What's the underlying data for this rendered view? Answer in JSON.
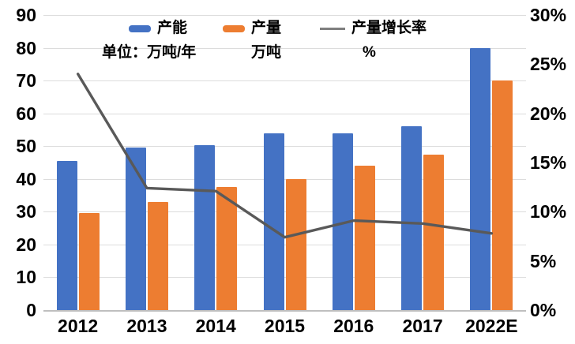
{
  "chart_data": {
    "type": "bar",
    "title": "",
    "categories": [
      "2012",
      "2013",
      "2014",
      "2015",
      "2016",
      "2017",
      "2022E"
    ],
    "series": [
      {
        "name": "产能",
        "kind": "bar",
        "unit": "万吨/年",
        "axis": "left",
        "color": "#4472C4",
        "values": [
          45.5,
          49.5,
          50.3,
          54,
          54,
          56,
          80
        ]
      },
      {
        "name": "产量",
        "kind": "bar",
        "unit": "万吨",
        "axis": "left",
        "color": "#ED7D31",
        "values": [
          29.5,
          33,
          37.5,
          40,
          44,
          47.5,
          70
        ]
      },
      {
        "name": "产量增长率",
        "kind": "line",
        "unit": "%",
        "axis": "right",
        "color": "#595959",
        "values": [
          24,
          12.4,
          12.1,
          7.4,
          9.1,
          8.8,
          7.8
        ]
      }
    ],
    "left_axis": {
      "min": 0,
      "max": 90,
      "step": 10,
      "ticks": [
        "90",
        "80",
        "70",
        "60",
        "50",
        "40",
        "30",
        "20",
        "10",
        "0"
      ]
    },
    "right_axis": {
      "min": 0,
      "max": 30,
      "step": 5,
      "ticks": [
        "30%",
        "25%",
        "20%",
        "15%",
        "10%",
        "5%",
        "0%"
      ]
    },
    "units_row": [
      "单位：万吨/年",
      "万吨",
      "%"
    ],
    "legend_position": "top",
    "grid": true,
    "colors": {
      "grid": "#dcdcdc",
      "axis_line": "#bfbfbf",
      "text": "#000000"
    }
  }
}
